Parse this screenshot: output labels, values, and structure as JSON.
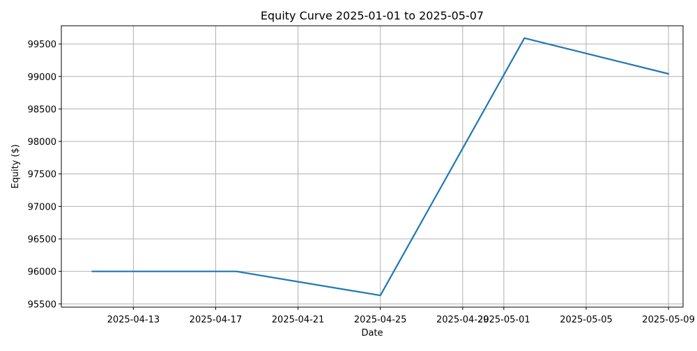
{
  "chart_data": {
    "type": "line",
    "title": "Equity Curve 2025-01-01 to 2025-05-07",
    "xlabel": "Date",
    "ylabel": "Equity ($)",
    "x_tick_labels": [
      "2025-04-13",
      "2025-04-17",
      "2025-04-21",
      "2025-04-25",
      "2025-04-29",
      "2025-05-01",
      "2025-05-05",
      "2025-05-09"
    ],
    "y_tick_labels": [
      "95500",
      "96000",
      "96500",
      "97000",
      "97500",
      "98000",
      "98500",
      "99000",
      "99500"
    ],
    "xlim": [
      "2025-04-09T12:00",
      "2025-05-09T17:00"
    ],
    "ylim": [
      95450,
      99780
    ],
    "grid": true,
    "series": [
      {
        "x": [
          "2025-04-11",
          "2025-04-18",
          "2025-04-25",
          "2025-05-02",
          "2025-05-09"
        ],
        "values": [
          96000,
          96000,
          95630,
          99590,
          99040
        ]
      }
    ],
    "colors": {
      "line": "#1f77b4",
      "grid": "#b0b0b0",
      "axes": "#000000"
    }
  }
}
